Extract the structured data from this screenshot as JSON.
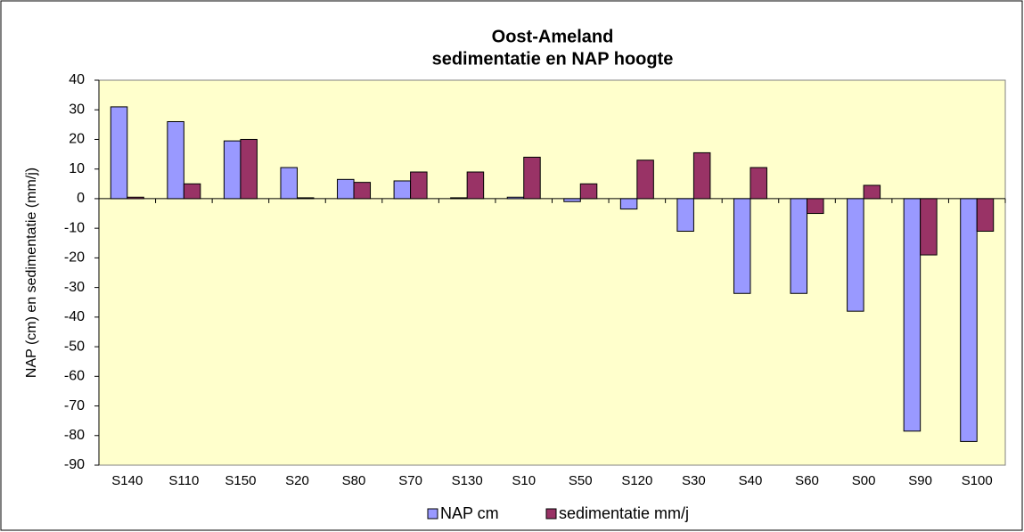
{
  "chart_data": {
    "type": "bar",
    "title": "Oost-Ameland",
    "subtitle": "sedimentatie en NAP hoogte",
    "y_label": "NAP (cm) en sedimentatie (mm/j)",
    "categories": [
      "S140",
      "S110",
      "S150",
      "S20",
      "S80",
      "S70",
      "S130",
      "S10",
      "S50",
      "S120",
      "S30",
      "S40",
      "S60",
      "S00",
      "S90",
      "S100"
    ],
    "series": [
      {
        "name": "NAP cm",
        "color": "#9999ff",
        "values": [
          31,
          26,
          19.5,
          10.5,
          6.5,
          6,
          0.3,
          0.5,
          -1,
          -3.5,
          -11,
          -32,
          -32,
          -38,
          -78.5,
          -82
        ]
      },
      {
        "name": "sedimentatie mm/j",
        "color": "#993366",
        "values": [
          0.5,
          5,
          20,
          0.3,
          5.5,
          9,
          9,
          14,
          5,
          13,
          15.5,
          10.5,
          -5,
          4.5,
          -19,
          -11
        ]
      }
    ],
    "ylim": [
      -90,
      40
    ],
    "yticks": [
      -90,
      -80,
      -70,
      -60,
      -50,
      -40,
      -30,
      -20,
      -10,
      0,
      10,
      20,
      30,
      40
    ],
    "plot_background": "#ffffcc",
    "legend": "bottom"
  }
}
